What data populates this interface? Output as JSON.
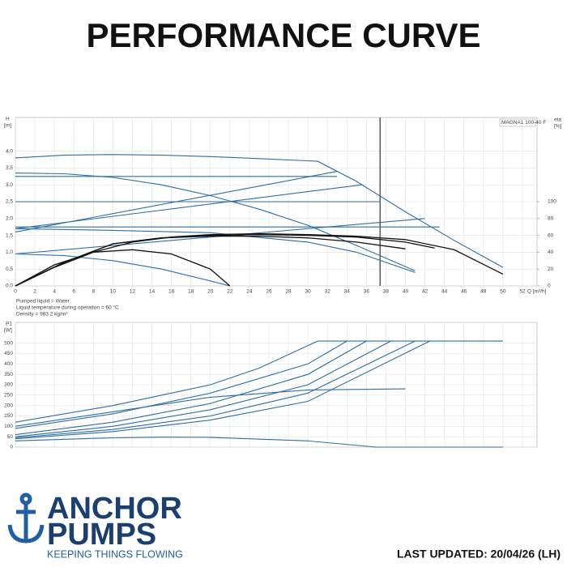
{
  "title": "PERFORMANCE CURVE",
  "chart_data": [
    {
      "type": "line",
      "y_label": "H",
      "y_unit": "[m]",
      "y2_label": "eta",
      "y2_unit": "[%]",
      "x_label": "Q [m³/h]",
      "box_label": "MAGNA1 100-40 F",
      "vline": 37.4,
      "grid": true,
      "xlim": [
        0,
        53.5
      ],
      "xticks": [
        0,
        2,
        4,
        6,
        8,
        10,
        12,
        14,
        16,
        18,
        20,
        22,
        24,
        26,
        28,
        30,
        32,
        34,
        36,
        38,
        40,
        42,
        44,
        46,
        48,
        50,
        52
      ],
      "ylim": [
        0,
        5
      ],
      "yticks": [
        {
          "value": 0,
          "label": "0.0"
        },
        0.5,
        {
          "value": 1,
          "label": "1.0"
        },
        1.5,
        {
          "value": 2,
          "label": "2.0"
        },
        2.5,
        {
          "value": 3,
          "label": "3.0"
        },
        3.5,
        {
          "value": 4,
          "label": "4.0"
        }
      ],
      "y2lim": [
        0,
        200
      ],
      "y2ticks": [
        0,
        20,
        40,
        60,
        80,
        100
      ],
      "notes": [
        "Pumped liquid = Water",
        "Liquid temperature during operation = 60 °C",
        "Density = 983.2 kg/m³"
      ],
      "series": [
        {
          "color": "#2e6da4",
          "x": [
            0,
            5,
            10,
            15,
            20,
            25,
            31,
            35,
            40,
            45,
            50
          ],
          "values": [
            3.8,
            3.88,
            3.9,
            3.88,
            3.84,
            3.78,
            3.7,
            3.1,
            2.2,
            1.35,
            0.55
          ]
        },
        {
          "color": "#2e6da4",
          "x": [
            0,
            5,
            10,
            15,
            20,
            25,
            30,
            35,
            41
          ],
          "values": [
            3.35,
            3.33,
            3.22,
            3.0,
            2.68,
            2.28,
            1.8,
            1.2,
            0.45
          ]
        },
        {
          "color": "#2e6da4",
          "x": [
            0,
            5,
            10,
            15,
            20,
            22
          ],
          "values": [
            0.95,
            0.9,
            0.75,
            0.5,
            0.15,
            0
          ]
        },
        {
          "color": "#2e6da4",
          "x": [
            0,
            33
          ],
          "values": [
            3.25,
            3.25
          ]
        },
        {
          "color": "#2e6da4",
          "x": [
            0,
            37.4
          ],
          "values": [
            2.5,
            2.5
          ]
        },
        {
          "color": "#2e6da4",
          "x": [
            0,
            43.5
          ],
          "values": [
            1.75,
            1.75
          ]
        },
        {
          "color": "#2e6da4",
          "x": [
            0,
            33
          ],
          "values": [
            1.6,
            3.4
          ]
        },
        {
          "color": "#2e6da4",
          "x": [
            0,
            35.5
          ],
          "values": [
            1.7,
            3.0
          ]
        },
        {
          "color": "#2e6da4",
          "x": [
            0,
            42
          ],
          "values": [
            0.95,
            2.0
          ]
        },
        {
          "color": "#2e6da4",
          "x": [
            0,
            10,
            20,
            30,
            35,
            41
          ],
          "values": [
            1.7,
            1.65,
            1.58,
            1.3,
            1.0,
            0.4
          ]
        },
        {
          "color": "#111111",
          "axis": "y2",
          "x": [
            0,
            4,
            8,
            12,
            16,
            20,
            25,
            30,
            35,
            40,
            45,
            50
          ],
          "values": [
            0,
            22,
            40,
            52,
            58,
            61,
            62,
            61,
            59,
            55,
            43,
            14
          ]
        },
        {
          "color": "#111111",
          "axis": "y2",
          "x": [
            0,
            4,
            8,
            12,
            16,
            20,
            22
          ],
          "values": [
            0,
            25,
            40,
            43,
            38,
            20,
            0
          ]
        },
        {
          "color": "#111111",
          "axis": "y2",
          "x": [
            0,
            5,
            10,
            15,
            20,
            25,
            30,
            35,
            40,
            43
          ],
          "values": [
            0,
            28,
            50,
            57,
            60,
            61,
            60,
            58,
            52,
            45
          ]
        },
        {
          "color": "#111111",
          "axis": "y2",
          "x": [
            0,
            5,
            10,
            15,
            20,
            25,
            30,
            35,
            40
          ],
          "values": [
            0,
            28,
            50,
            57,
            59,
            59,
            57,
            52,
            44
          ]
        }
      ]
    },
    {
      "type": "line",
      "y_label": "P1",
      "y_unit": "[W]",
      "grid": true,
      "show_xtick_labels": false,
      "xlim": [
        0,
        53.5
      ],
      "xticks": [
        0,
        2,
        4,
        6,
        8,
        10,
        12,
        14,
        16,
        18,
        20,
        22,
        24,
        26,
        28,
        30,
        32,
        34,
        36,
        38,
        40,
        42,
        44,
        46,
        48,
        50,
        52
      ],
      "ylim": [
        0,
        600
      ],
      "yticks": [
        0,
        50,
        100,
        150,
        200,
        250,
        300,
        350,
        400,
        450,
        500
      ],
      "series": [
        {
          "color": "#2e6da4",
          "x": [
            0,
            10,
            20,
            25,
            31,
            50
          ],
          "values": [
            120,
            200,
            300,
            380,
            510,
            510
          ]
        },
        {
          "color": "#2e6da4",
          "x": [
            0,
            10,
            20,
            30,
            34
          ],
          "values": [
            90,
            160,
            260,
            400,
            510
          ]
        },
        {
          "color": "#2e6da4",
          "x": [
            0,
            10,
            20,
            30,
            36
          ],
          "values": [
            60,
            120,
            210,
            350,
            510
          ]
        },
        {
          "color": "#2e6da4",
          "x": [
            0,
            10,
            20,
            30,
            38.5
          ],
          "values": [
            50,
            100,
            180,
            300,
            510
          ]
        },
        {
          "color": "#2e6da4",
          "x": [
            0,
            10,
            20,
            30,
            41
          ],
          "values": [
            45,
            85,
            150,
            260,
            510
          ]
        },
        {
          "color": "#2e6da4",
          "x": [
            0,
            10,
            20,
            30,
            42.5
          ],
          "values": [
            40,
            75,
            130,
            220,
            510
          ]
        },
        {
          "color": "#2e6da4",
          "x": [
            0,
            10,
            20,
            30,
            40
          ],
          "values": [
            100,
            170,
            240,
            275,
            280
          ]
        },
        {
          "color": "#2e6da4",
          "x": [
            0,
            10,
            15,
            20,
            30,
            37,
            50
          ],
          "values": [
            30,
            45,
            48,
            47,
            30,
            0,
            0
          ]
        }
      ]
    }
  ],
  "logo": {
    "line1": "ANCHOR",
    "line2": "PUMPS",
    "tagline": "KEEPING THINGS FLOWING"
  },
  "updated": "LAST UPDATED: 20/04/26 (LH)"
}
